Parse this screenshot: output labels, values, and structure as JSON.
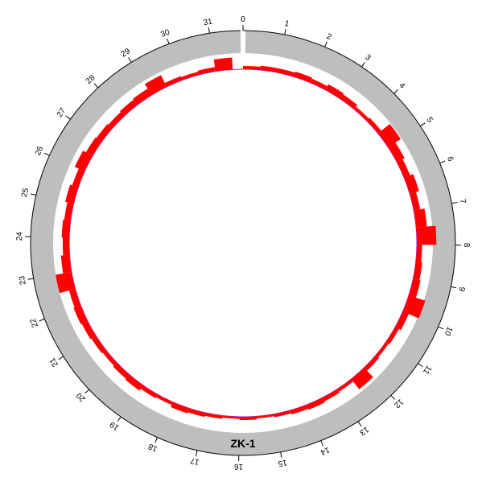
{
  "chart_data": {
    "type": "circular-histogram",
    "label": "ZK-1",
    "xlim": [
      0,
      31.8
    ],
    "xticks": [
      0,
      1,
      2,
      3,
      4,
      5,
      6,
      7,
      8,
      9,
      10,
      11,
      12,
      13,
      14,
      15,
      16,
      17,
      18,
      19,
      20,
      21,
      22,
      23,
      24,
      25,
      26,
      27,
      28,
      29,
      30,
      31
    ],
    "ring_color": "#bebebe",
    "color": "#ff0000",
    "baseline_color": "#9b30ff",
    "bins": [
      0,
      0.5,
      1,
      1.5,
      2,
      2.5,
      3,
      3.5,
      4,
      4.5,
      5,
      5.5,
      6,
      6.5,
      7,
      7.5,
      8,
      8.5,
      9,
      9.5,
      10,
      10.5,
      11,
      11.5,
      12,
      12.5,
      13,
      13.5,
      14,
      14.5,
      15,
      15.5,
      16,
      16.5,
      17,
      17.5,
      18,
      18.5,
      19,
      19.5,
      20,
      20.5,
      21,
      21.5,
      22,
      22.5,
      23,
      23.5,
      24,
      24.5,
      25,
      25.5,
      26,
      26.5,
      27,
      27.5,
      28,
      28.5,
      29,
      29.5,
      30,
      30.5,
      31,
      31.5
    ],
    "values": [
      3,
      4,
      4,
      5,
      4,
      6,
      5,
      3,
      4,
      14,
      8,
      6,
      9,
      6,
      10,
      18,
      5,
      6,
      7,
      16,
      6,
      4,
      3,
      4,
      12,
      3,
      4,
      5,
      4,
      3,
      2,
      3,
      2,
      3,
      4,
      5,
      3,
      4,
      6,
      5,
      4,
      5,
      6,
      7,
      6,
      15,
      8,
      6,
      7,
      6,
      8,
      6,
      10,
      7,
      6,
      5,
      6,
      7,
      12,
      4,
      3,
      4,
      11
    ]
  }
}
